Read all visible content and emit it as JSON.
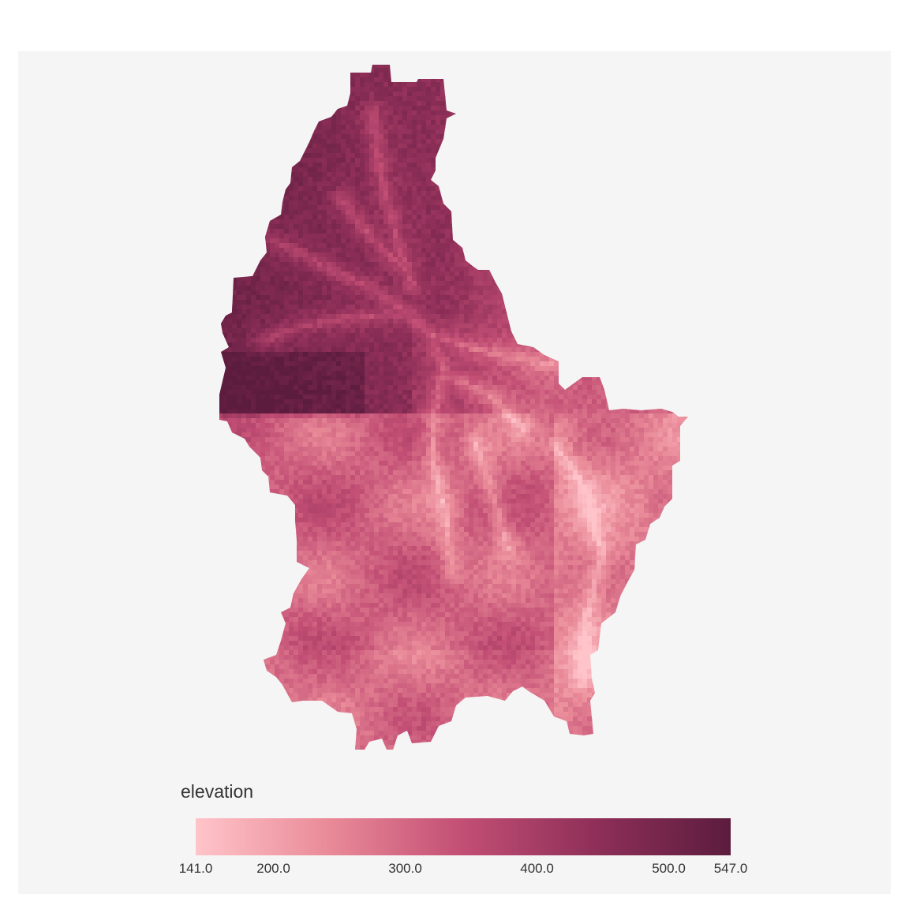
{
  "map": {
    "type": "raster",
    "region": "Luxembourg",
    "variable": "elevation",
    "background_color": "#f5f5f5"
  },
  "legend": {
    "title": "elevation",
    "min": 141.0,
    "max": 547.0,
    "ticks": [
      {
        "value": 141.0,
        "label": "141.0"
      },
      {
        "value": 200.0,
        "label": "200.0"
      },
      {
        "value": 300.0,
        "label": "300.0"
      },
      {
        "value": 400.0,
        "label": "400.0"
      },
      {
        "value": 500.0,
        "label": "500.0"
      },
      {
        "value": 547.0,
        "label": "547.0"
      }
    ],
    "colors": [
      "#ffc4c9",
      "#e98a98",
      "#c24e74",
      "#8e2f58",
      "#5c1c3e"
    ]
  }
}
